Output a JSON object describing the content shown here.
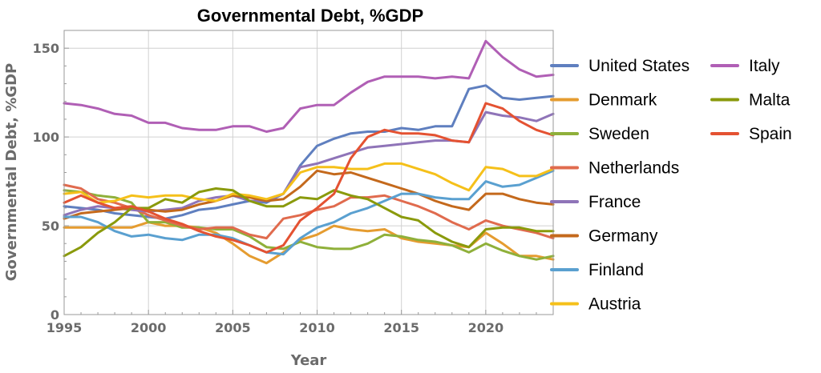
{
  "chart_data": {
    "type": "line",
    "title": "Governmental Debt, %GDP",
    "xlabel": "Year",
    "ylabel": "Governmental Debt, %GDP",
    "xlim": [
      1995,
      2024
    ],
    "ylim": [
      0,
      160
    ],
    "xticks": [
      1995,
      2000,
      2005,
      2010,
      2015,
      2020
    ],
    "yticks": [
      0,
      50,
      100,
      150
    ],
    "grid": true,
    "legend_placement": "right",
    "x": [
      1995,
      1996,
      1997,
      1998,
      1999,
      2000,
      2001,
      2002,
      2003,
      2004,
      2005,
      2006,
      2007,
      2008,
      2009,
      2010,
      2011,
      2012,
      2013,
      2014,
      2015,
      2016,
      2017,
      2018,
      2019,
      2020,
      2021,
      2022,
      2023,
      2024
    ],
    "series": [
      {
        "name": "United States",
        "color": "#5f7fbf",
        "values": [
          61,
          60,
          59,
          57,
          56,
          55,
          54,
          56,
          59,
          60,
          62,
          64,
          63,
          68,
          84,
          95,
          99,
          102,
          103,
          103,
          105,
          104,
          106,
          106,
          127,
          129,
          122,
          121,
          122,
          123
        ]
      },
      {
        "name": "Denmark",
        "color": "#e59c30",
        "values": [
          49,
          49,
          49,
          49,
          49,
          52,
          50,
          50,
          49,
          46,
          40,
          33,
          29,
          35,
          42,
          45,
          50,
          48,
          47,
          48,
          43,
          41,
          40,
          39,
          38,
          46,
          40,
          33,
          33,
          31
        ]
      },
      {
        "name": "Sweden",
        "color": "#8fb03a",
        "values": [
          70,
          69,
          67,
          66,
          63,
          52,
          52,
          49,
          49,
          48,
          48,
          44,
          38,
          37,
          41,
          38,
          37,
          37,
          40,
          45,
          44,
          42,
          41,
          39,
          35,
          40,
          36,
          33,
          31,
          33
        ]
      },
      {
        "name": "Netherlands",
        "color": "#e06b4e",
        "values": [
          73,
          71,
          65,
          63,
          60,
          56,
          53,
          50,
          48,
          49,
          49,
          45,
          43,
          54,
          56,
          59,
          61,
          66,
          66,
          67,
          64,
          61,
          57,
          52,
          48,
          53,
          50,
          48,
          46,
          43
        ]
      },
      {
        "name": "France",
        "color": "#8f74b8",
        "values": [
          56,
          59,
          61,
          60,
          59,
          58,
          59,
          60,
          64,
          66,
          67,
          64,
          64,
          68,
          83,
          85,
          88,
          91,
          94,
          95,
          96,
          97,
          98,
          98,
          97,
          114,
          112,
          111,
          109,
          113
        ]
      },
      {
        "name": "Germany",
        "color": "#c4691c",
        "values": [
          54,
          57,
          58,
          59,
          60,
          59,
          58,
          59,
          62,
          64,
          67,
          66,
          64,
          65,
          72,
          81,
          79,
          80,
          77,
          74,
          71,
          68,
          64,
          61,
          59,
          68,
          68,
          65,
          63,
          62
        ]
      },
      {
        "name": "Finland",
        "color": "#5aa0d0",
        "values": [
          55,
          55,
          52,
          47,
          44,
          45,
          43,
          42,
          45,
          45,
          43,
          39,
          35,
          34,
          43,
          49,
          52,
          57,
          60,
          64,
          68,
          68,
          66,
          65,
          65,
          75,
          72,
          73,
          77,
          81
        ]
      },
      {
        "name": "Austria",
        "color": "#f5c01a",
        "values": [
          68,
          69,
          63,
          64,
          67,
          66,
          67,
          67,
          65,
          64,
          68,
          67,
          65,
          68,
          80,
          83,
          83,
          82,
          82,
          85,
          85,
          82,
          79,
          74,
          70,
          83,
          82,
          78,
          78,
          82
        ]
      },
      {
        "name": "Italy",
        "color": "#b05fb5",
        "values": [
          119,
          118,
          116,
          113,
          112,
          108,
          108,
          105,
          104,
          104,
          106,
          106,
          103,
          105,
          116,
          118,
          118,
          125,
          131,
          134,
          134,
          134,
          133,
          134,
          133,
          154,
          145,
          138,
          134,
          135
        ]
      },
      {
        "name": "Malta",
        "color": "#8a9a0c",
        "values": [
          33,
          38,
          46,
          52,
          60,
          60,
          65,
          63,
          69,
          71,
          70,
          64,
          61,
          61,
          66,
          65,
          70,
          67,
          65,
          60,
          55,
          53,
          46,
          41,
          38,
          48,
          49,
          49,
          47,
          47
        ]
      },
      {
        "name": "Spain",
        "color": "#e45232",
        "values": [
          63,
          67,
          63,
          60,
          61,
          58,
          54,
          51,
          47,
          44,
          42,
          39,
          35,
          39,
          53,
          60,
          68,
          88,
          100,
          104,
          102,
          102,
          101,
          98,
          97,
          119,
          116,
          109,
          104,
          101
        ]
      }
    ]
  }
}
